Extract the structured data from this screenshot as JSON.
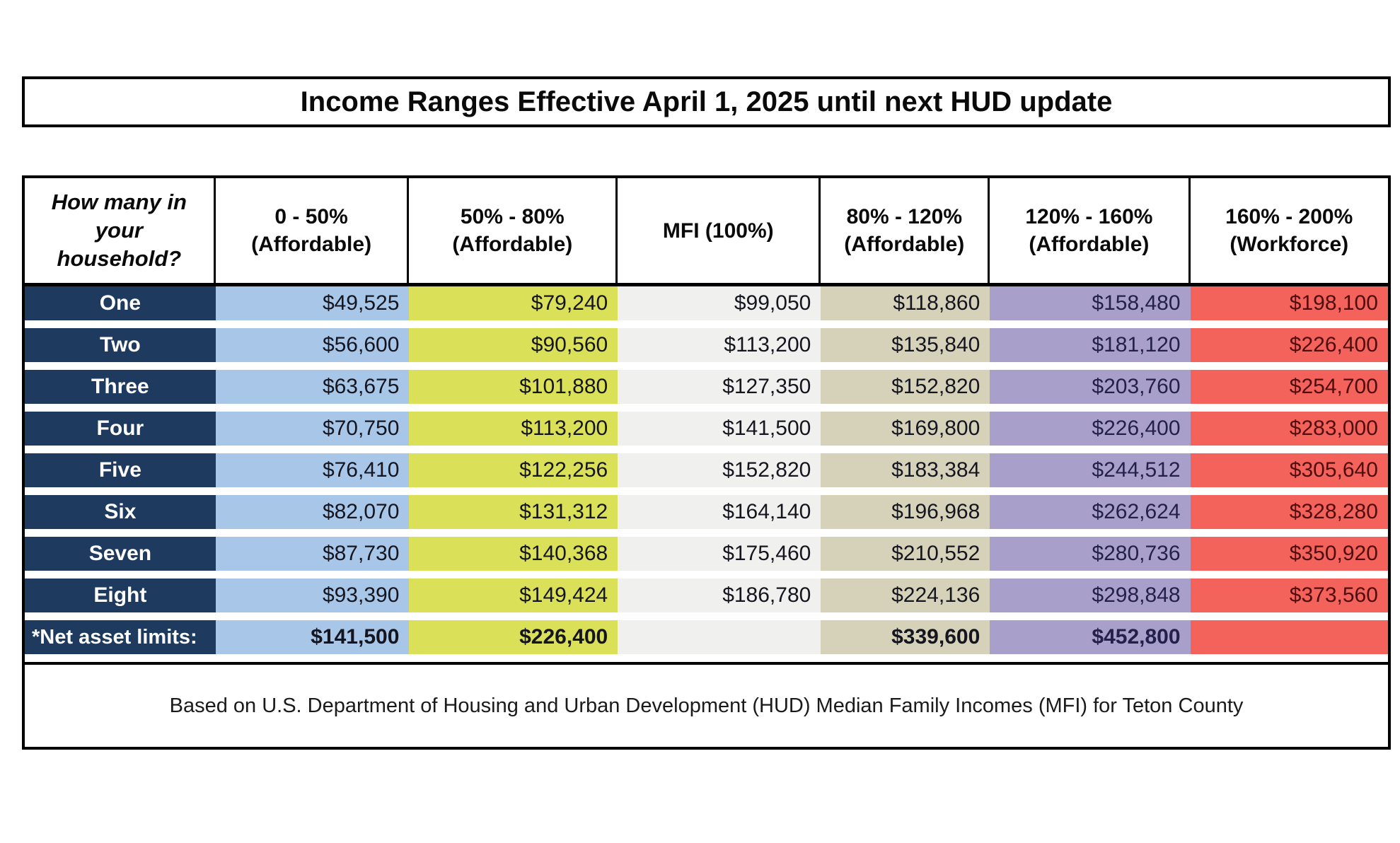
{
  "title": "Income Ranges Effective April 1, 2025 until next HUD update",
  "table": {
    "corner_header": {
      "line1": "How many in",
      "line2": "your",
      "line3": "household?"
    },
    "row_header": {
      "bg": "#1e3a5f",
      "text": "#ffffff"
    },
    "columns": [
      {
        "label_line1": "0 - 50%",
        "label_line2": "(Affordable)",
        "bg": "#a7c6e8",
        "text": "#15151f"
      },
      {
        "label_line1": "50% - 80%",
        "label_line2": "(Affordable)",
        "bg": "#dae158",
        "text": "#15151f"
      },
      {
        "label_line1": "MFI (100%)",
        "label_line2": "",
        "bg": "#f0f0ee",
        "text": "#15151f"
      },
      {
        "label_line1": "80% - 120%",
        "label_line2": "(Affordable)",
        "bg": "#d6d2ba",
        "text": "#15151f"
      },
      {
        "label_line1": "120% - 160%",
        "label_line2": "(Affordable)",
        "bg": "#a8a0ca",
        "text": "#23204b"
      },
      {
        "label_line1": "160% - 200%",
        "label_line2": "(Workforce)",
        "bg": "#f4625c",
        "text": "#4f0d0d"
      }
    ],
    "rows": [
      {
        "label": "One",
        "values": [
          "$49,525",
          "$79,240",
          "$99,050",
          "$118,860",
          "$158,480",
          "$198,100"
        ]
      },
      {
        "label": "Two",
        "values": [
          "$56,600",
          "$90,560",
          "$113,200",
          "$135,840",
          "$181,120",
          "$226,400"
        ]
      },
      {
        "label": "Three",
        "values": [
          "$63,675",
          "$101,880",
          "$127,350",
          "$152,820",
          "$203,760",
          "$254,700"
        ]
      },
      {
        "label": "Four",
        "values": [
          "$70,750",
          "$113,200",
          "$141,500",
          "$169,800",
          "$226,400",
          "$283,000"
        ]
      },
      {
        "label": "Five",
        "values": [
          "$76,410",
          "$122,256",
          "$152,820",
          "$183,384",
          "$244,512",
          "$305,640"
        ]
      },
      {
        "label": "Six",
        "values": [
          "$82,070",
          "$131,312",
          "$164,140",
          "$196,968",
          "$262,624",
          "$328,280"
        ]
      },
      {
        "label": "Seven",
        "values": [
          "$87,730",
          "$140,368",
          "$175,460",
          "$210,552",
          "$280,736",
          "$350,920"
        ]
      },
      {
        "label": "Eight",
        "values": [
          "$93,390",
          "$149,424",
          "$186,780",
          "$224,136",
          "$298,848",
          "$373,560"
        ]
      }
    ],
    "net_asset_row": {
      "label": "*Net asset limits:",
      "values": [
        "$141,500",
        "$226,400",
        "",
        "$339,600",
        "$452,800",
        ""
      ]
    },
    "footer": "Based on U.S. Department of Housing and Urban Development (HUD) Median Family Incomes (MFI) for Teton County"
  }
}
